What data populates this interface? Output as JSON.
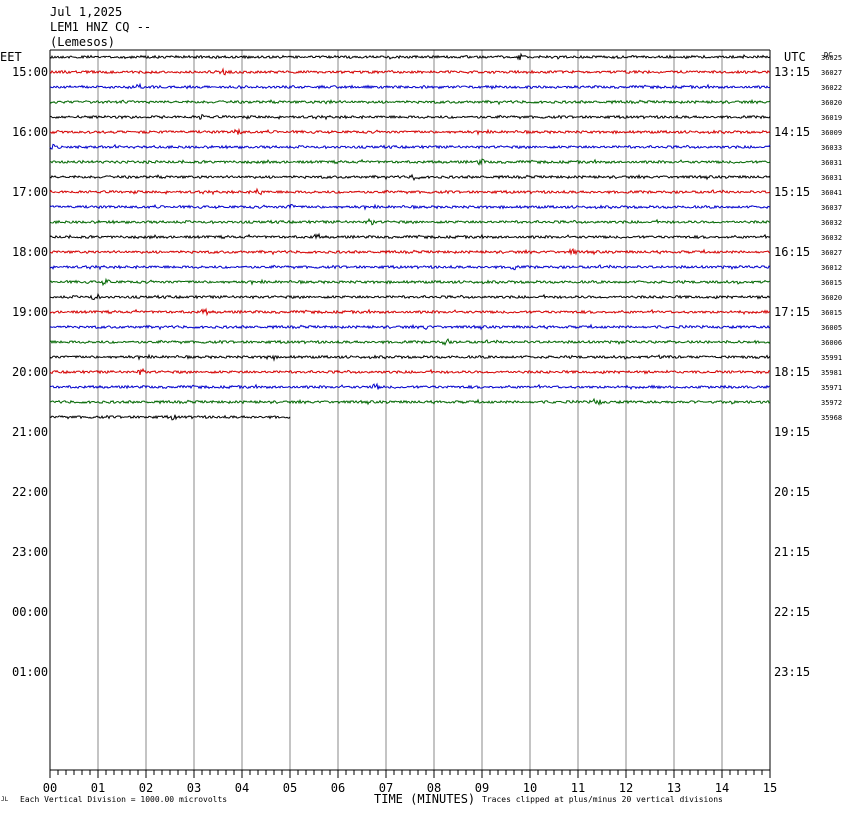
{
  "header": {
    "date": "Jul 1,2025",
    "station": "LEM1 HNZ CQ --",
    "location": "(Lemesos)"
  },
  "left_tz_label": "EET",
  "right_tz_label": "UTC",
  "corner_label": "DC",
  "footer": {
    "scale_note": "Each Vertical Division = 1000.00 microvolts",
    "time_label": "TIME (MINUTES)",
    "clip_note": "Traces clipped at plus/minus 20 vertical divisions",
    "mark": "JL"
  },
  "colors": {
    "trace_cycle": [
      "#000000",
      "#d40000",
      "#0000cc",
      "#006600"
    ],
    "grid": "#888888",
    "frame": "#000000"
  },
  "chart_data": {
    "type": "line",
    "title": "",
    "xlabel": "TIME (MINUTES)",
    "xlim": [
      0,
      15
    ],
    "x_ticks": [
      "00",
      "01",
      "02",
      "03",
      "04",
      "05",
      "06",
      "07",
      "08",
      "09",
      "10",
      "11",
      "12",
      "13",
      "14",
      "15"
    ],
    "left_hour_labels": [
      "15:00",
      "16:00",
      "17:00",
      "18:00",
      "19:00",
      "20:00",
      "21:00",
      "22:00",
      "23:00",
      "00:00",
      "01:00"
    ],
    "right_hour_labels": [
      "13:15",
      "14:15",
      "15:15",
      "16:15",
      "17:15",
      "18:15",
      "19:15",
      "20:15",
      "21:15",
      "22:15",
      "23:15"
    ],
    "rows_per_hour": 4,
    "first_hour_row_offset": 1,
    "total_rows": 48,
    "traces": [
      {
        "dc": "36025",
        "end_minute": 15
      },
      {
        "dc": "36027",
        "end_minute": 15
      },
      {
        "dc": "36022",
        "end_minute": 15
      },
      {
        "dc": "36020",
        "end_minute": 15
      },
      {
        "dc": "36019",
        "end_minute": 15
      },
      {
        "dc": "36009",
        "end_minute": 15
      },
      {
        "dc": "36033",
        "end_minute": 15
      },
      {
        "dc": "36031",
        "end_minute": 15
      },
      {
        "dc": "36031",
        "end_minute": 15
      },
      {
        "dc": "36041",
        "end_minute": 15
      },
      {
        "dc": "36037",
        "end_minute": 15
      },
      {
        "dc": "36032",
        "end_minute": 15
      },
      {
        "dc": "36032",
        "end_minute": 15
      },
      {
        "dc": "36027",
        "end_minute": 15
      },
      {
        "dc": "36012",
        "end_minute": 15
      },
      {
        "dc": "36015",
        "end_minute": 15
      },
      {
        "dc": "36020",
        "end_minute": 15
      },
      {
        "dc": "36015",
        "end_minute": 15
      },
      {
        "dc": "36005",
        "end_minute": 15
      },
      {
        "dc": "36006",
        "end_minute": 15
      },
      {
        "dc": "35991",
        "end_minute": 15
      },
      {
        "dc": "35981",
        "end_minute": 15
      },
      {
        "dc": "35971",
        "end_minute": 15
      },
      {
        "dc": "35972",
        "end_minute": 15
      },
      {
        "dc": "35968",
        "end_minute": 5
      }
    ]
  }
}
